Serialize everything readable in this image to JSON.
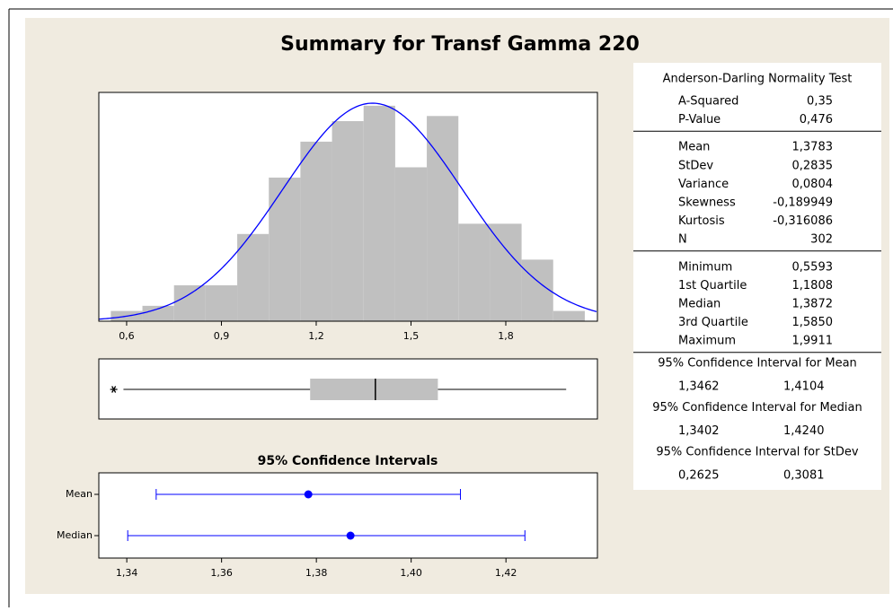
{
  "title": "Summary for Transf Gamma 220",
  "chart_data": [
    {
      "type": "histogram",
      "bins": [
        0.55,
        0.65,
        0.75,
        0.85,
        0.95,
        1.05,
        1.15,
        1.25,
        1.35,
        1.45,
        1.55,
        1.65,
        1.75,
        1.85,
        1.95,
        2.05
      ],
      "values": [
        2,
        3,
        7,
        7,
        17,
        28,
        35,
        39,
        42,
        30,
        40,
        19,
        19,
        12,
        2
      ],
      "color": "#c0c0c0",
      "normal_fit": {
        "mean": 1.3783,
        "stdev": 0.2835,
        "color": "#0000ff"
      },
      "xlim": [
        0.512,
        2.09
      ],
      "ylim": [
        0,
        44.6
      ],
      "xticks": [
        {
          "value": 0.6,
          "label": "0,6"
        },
        {
          "value": 0.9,
          "label": "0,9"
        },
        {
          "value": 1.2,
          "label": "1,2"
        },
        {
          "value": 1.5,
          "label": "1,5"
        },
        {
          "value": 1.8,
          "label": "1,8"
        }
      ]
    },
    {
      "type": "box",
      "outliers": [
        0.5593
      ],
      "whisker_low": 0.59,
      "q1": 1.1808,
      "median": 1.3872,
      "q3": 1.585,
      "whisker_high": 1.9911,
      "color": "#c0c0c0",
      "xlim": [
        0.512,
        2.09
      ]
    },
    {
      "type": "interval",
      "title": "95% Confidence Intervals",
      "categories": [
        "Mean",
        "Median"
      ],
      "values": [
        1.3783,
        1.3872
      ],
      "lower": [
        1.3462,
        1.3402
      ],
      "upper": [
        1.4104,
        1.424
      ],
      "color": "#0000ff",
      "xlim": [
        1.3341,
        1.4393
      ],
      "xticks": [
        {
          "value": 1.34,
          "label": "1,34"
        },
        {
          "value": 1.36,
          "label": "1,36"
        },
        {
          "value": 1.38,
          "label": "1,38"
        },
        {
          "value": 1.4,
          "label": "1,40"
        },
        {
          "value": 1.42,
          "label": "1,42"
        }
      ]
    }
  ],
  "table": {
    "header": "Anderson-Darling Normality Test",
    "sections": [
      [
        [
          "A-Squared",
          "0,35"
        ],
        [
          "P-Value",
          "0,476"
        ]
      ],
      [
        [
          "Mean",
          "1,3783"
        ],
        [
          "StDev",
          "0,2835"
        ],
        [
          "Variance",
          "0,0804"
        ],
        [
          "Skewness",
          "-0,189949"
        ],
        [
          "Kurtosis",
          "-0,316086"
        ],
        [
          "N",
          "302"
        ]
      ],
      [
        [
          "Minimum",
          "0,5593"
        ],
        [
          "1st Quartile",
          "1,1808"
        ],
        [
          "Median",
          "1,3872"
        ],
        [
          "3rd Quartile",
          "1,5850"
        ],
        [
          "Maximum",
          "1,9911"
        ]
      ]
    ],
    "intervals": [
      {
        "title": "95% Confidence Interval for Mean",
        "values": [
          "1,3462",
          "1,4104"
        ]
      },
      {
        "title": "95% Confidence Interval for Median",
        "values": [
          "1,3402",
          "1,4240"
        ]
      },
      {
        "title": "95% Confidence Interval for StDev",
        "values": [
          "0,2625",
          "0,3081"
        ]
      }
    ]
  }
}
